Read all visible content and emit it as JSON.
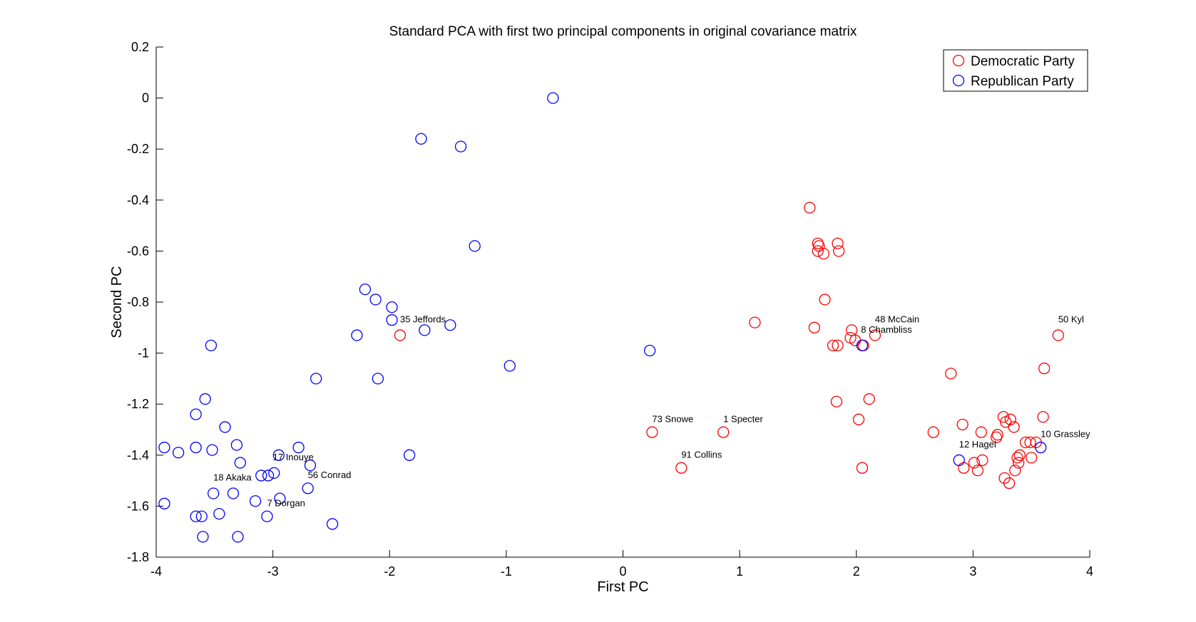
{
  "chart_data": {
    "type": "scatter",
    "title": "Standard PCA with first two principal components in original covariance matriх",
    "xlabel": "First PC",
    "ylabel": "Second PC",
    "xlim": [
      -4,
      4
    ],
    "ylim": [
      -1.8,
      0.2
    ],
    "xticks": [
      "-4",
      "-3",
      "-2",
      "-1",
      "0",
      "1",
      "2",
      "3",
      "4"
    ],
    "yticks": [
      "0.2",
      "0",
      "-0.2",
      "-0.4",
      "-0.6",
      "-0.8",
      "-1",
      "-1.2",
      "-1.4",
      "-1.6",
      "-1.8"
    ],
    "xtick_values": [
      -4,
      -3,
      -2,
      -1,
      0,
      1,
      2,
      3,
      4
    ],
    "ytick_values": [
      0.2,
      0,
      -0.2,
      -0.4,
      -0.6,
      -0.8,
      -1,
      -1.2,
      -1.4,
      -1.6,
      -1.8
    ],
    "grid": false,
    "legend_position": "top-right",
    "marker": "open-circle",
    "series": [
      {
        "name": "Democratic Party",
        "color": "#ff0000",
        "points": [
          [
            -1.91,
            -0.93
          ],
          [
            0.25,
            -1.31
          ],
          [
            0.5,
            -1.45
          ],
          [
            0.86,
            -1.31
          ],
          [
            1.13,
            -0.88
          ],
          [
            1.6,
            -0.43
          ],
          [
            1.67,
            -0.57
          ],
          [
            1.68,
            -0.58
          ],
          [
            1.67,
            -0.6
          ],
          [
            1.72,
            -0.61
          ],
          [
            1.84,
            -0.57
          ],
          [
            1.85,
            -0.6
          ],
          [
            1.73,
            -0.79
          ],
          [
            1.64,
            -0.9
          ],
          [
            1.8,
            -0.97
          ],
          [
            1.84,
            -0.97
          ],
          [
            1.96,
            -0.91
          ],
          [
            1.95,
            -0.94
          ],
          [
            1.99,
            -0.95
          ],
          [
            2.06,
            -0.97
          ],
          [
            2.16,
            -0.93
          ],
          [
            1.83,
            -1.19
          ],
          [
            2.11,
            -1.18
          ],
          [
            2.02,
            -1.26
          ],
          [
            2.05,
            -1.45
          ],
          [
            2.66,
            -1.31
          ],
          [
            2.81,
            -1.08
          ],
          [
            2.91,
            -1.28
          ],
          [
            2.92,
            -1.45
          ],
          [
            3.01,
            -1.43
          ],
          [
            3.04,
            -1.46
          ],
          [
            3.07,
            -1.31
          ],
          [
            3.08,
            -1.42
          ],
          [
            3.2,
            -1.33
          ],
          [
            3.21,
            -1.32
          ],
          [
            3.26,
            -1.25
          ],
          [
            3.28,
            -1.27
          ],
          [
            3.32,
            -1.26
          ],
          [
            3.35,
            -1.29
          ],
          [
            3.27,
            -1.49
          ],
          [
            3.31,
            -1.51
          ],
          [
            3.36,
            -1.46
          ],
          [
            3.38,
            -1.41
          ],
          [
            3.39,
            -1.43
          ],
          [
            3.4,
            -1.4
          ],
          [
            3.45,
            -1.35
          ],
          [
            3.49,
            -1.35
          ],
          [
            3.5,
            -1.41
          ],
          [
            3.54,
            -1.35
          ],
          [
            3.6,
            -1.25
          ],
          [
            3.61,
            -1.06
          ],
          [
            3.73,
            -0.93
          ]
        ]
      },
      {
        "name": "Republican Party",
        "color": "#0000ff",
        "points": [
          [
            -0.6,
            0.0
          ],
          [
            -1.73,
            -0.16
          ],
          [
            -1.39,
            -0.19
          ],
          [
            -1.27,
            -0.58
          ],
          [
            -2.21,
            -0.75
          ],
          [
            -2.12,
            -0.79
          ],
          [
            -1.98,
            -0.82
          ],
          [
            -1.98,
            -0.87
          ],
          [
            -1.48,
            -0.89
          ],
          [
            -1.7,
            -0.91
          ],
          [
            -2.28,
            -0.93
          ],
          [
            -0.97,
            -1.05
          ],
          [
            -2.1,
            -1.1
          ],
          [
            -2.63,
            -1.1
          ],
          [
            -1.83,
            -1.4
          ],
          [
            0.23,
            -0.99
          ],
          [
            2.05,
            -0.97
          ],
          [
            2.88,
            -1.42
          ],
          [
            3.58,
            -1.37
          ],
          [
            -3.53,
            -0.97
          ],
          [
            -3.58,
            -1.18
          ],
          [
            -3.66,
            -1.24
          ],
          [
            -3.41,
            -1.29
          ],
          [
            -3.66,
            -1.37
          ],
          [
            -3.52,
            -1.38
          ],
          [
            -3.31,
            -1.36
          ],
          [
            -3.28,
            -1.43
          ],
          [
            -3.93,
            -1.37
          ],
          [
            -3.81,
            -1.39
          ],
          [
            -2.78,
            -1.37
          ],
          [
            -2.95,
            -1.4
          ],
          [
            -2.68,
            -1.44
          ],
          [
            -2.99,
            -1.47
          ],
          [
            -3.04,
            -1.48
          ],
          [
            -3.1,
            -1.48
          ],
          [
            -3.51,
            -1.55
          ],
          [
            -3.34,
            -1.55
          ],
          [
            -2.7,
            -1.53
          ],
          [
            -2.94,
            -1.57
          ],
          [
            -3.15,
            -1.58
          ],
          [
            -3.93,
            -1.59
          ],
          [
            -3.66,
            -1.64
          ],
          [
            -3.61,
            -1.64
          ],
          [
            -3.46,
            -1.63
          ],
          [
            -3.05,
            -1.64
          ],
          [
            -3.3,
            -1.72
          ],
          [
            -3.6,
            -1.72
          ],
          [
            -2.49,
            -1.67
          ]
        ]
      }
    ],
    "annotations": [
      {
        "text": "35 Jeffords",
        "x": -1.91,
        "y": -0.88
      },
      {
        "text": "73 Snowe",
        "x": 0.25,
        "y": -1.27
      },
      {
        "text": "1 Specter",
        "x": 0.86,
        "y": -1.27
      },
      {
        "text": "91 Collins",
        "x": 0.5,
        "y": -1.41
      },
      {
        "text": "48 McCain",
        "x": 2.16,
        "y": -0.88
      },
      {
        "text": "8 Chambliss",
        "x": 2.04,
        "y": -0.92
      },
      {
        "text": "50 Kyl",
        "x": 3.73,
        "y": -0.88
      },
      {
        "text": "10 Grassley",
        "x": 3.58,
        "y": -1.33
      },
      {
        "text": "12 Hagel",
        "x": 2.88,
        "y": -1.37
      },
      {
        "text": "17 Inouye",
        "x": -3.0,
        "y": -1.42
      },
      {
        "text": "56 Conrad",
        "x": -2.7,
        "y": -1.49
      },
      {
        "text": "18 Akaka",
        "x": -3.51,
        "y": -1.5
      },
      {
        "text": "7 Dorgan",
        "x": -3.05,
        "y": -1.6
      }
    ]
  }
}
